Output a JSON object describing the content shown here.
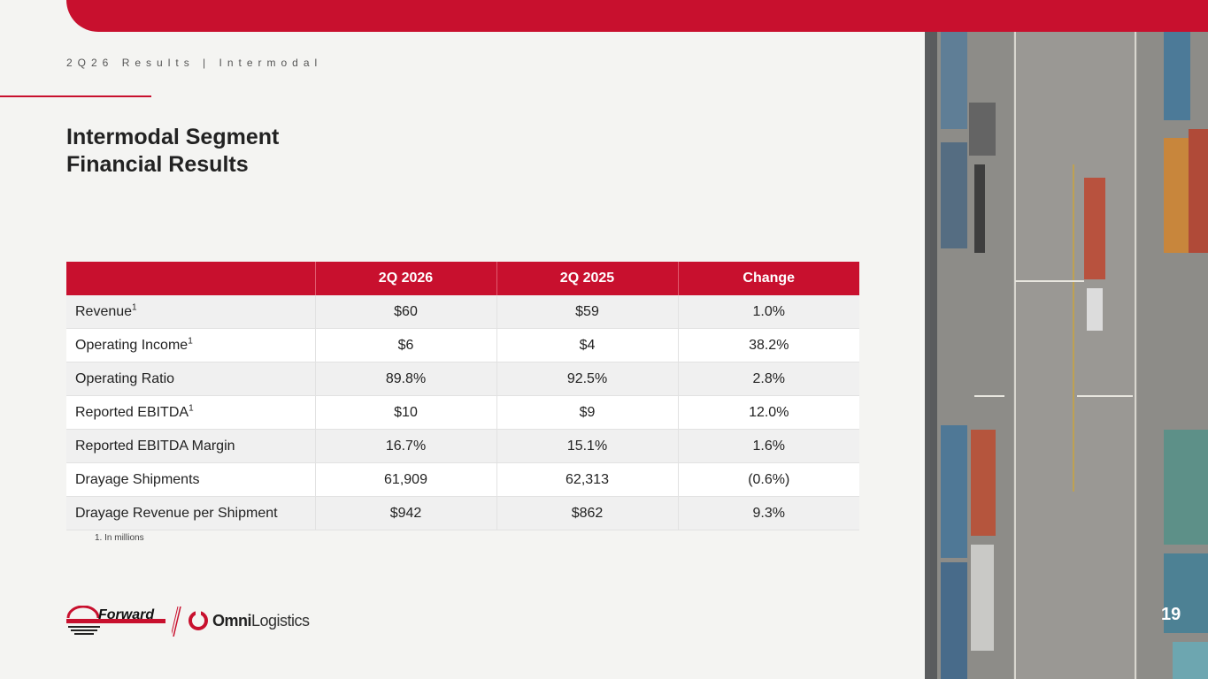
{
  "header": {
    "breadcrumb": "2Q26 Results | Intermodal"
  },
  "title": {
    "line1": "Intermodal Segment",
    "line2": "Financial Results"
  },
  "table": {
    "columns": [
      "",
      "2Q 2026",
      "2Q 2025",
      "Change"
    ],
    "rows": [
      {
        "label": "Revenue",
        "sup": "1",
        "q2026": "$60",
        "q2025": "$59",
        "change": "1.0%"
      },
      {
        "label": "Operating Income",
        "sup": "1",
        "q2026": "$6",
        "q2025": "$4",
        "change": "38.2%"
      },
      {
        "label": "Operating Ratio",
        "sup": "",
        "q2026": "89.8%",
        "q2025": "92.5%",
        "change": "2.8%"
      },
      {
        "label": "Reported EBITDA",
        "sup": "1",
        "q2026": "$10",
        "q2025": "$9",
        "change": "12.0%"
      },
      {
        "label": "Reported EBITDA Margin",
        "sup": "",
        "q2026": "16.7%",
        "q2025": "15.1%",
        "change": "1.6%"
      },
      {
        "label": "Drayage Shipments",
        "sup": "",
        "q2026": "61,909",
        "q2025": "62,313",
        "change": "(0.6%)"
      },
      {
        "label": "Drayage Revenue per Shipment",
        "sup": "",
        "q2026": "$942",
        "q2025": "$862",
        "change": "9.3%"
      }
    ]
  },
  "footnote": "1.  In millions",
  "logos": {
    "forward": "Forward",
    "omni_bold": "Omni",
    "omni_light": "Logistics"
  },
  "page_number": "19",
  "colors": {
    "brand_red": "#c8102e",
    "background": "#f4f4f2"
  }
}
